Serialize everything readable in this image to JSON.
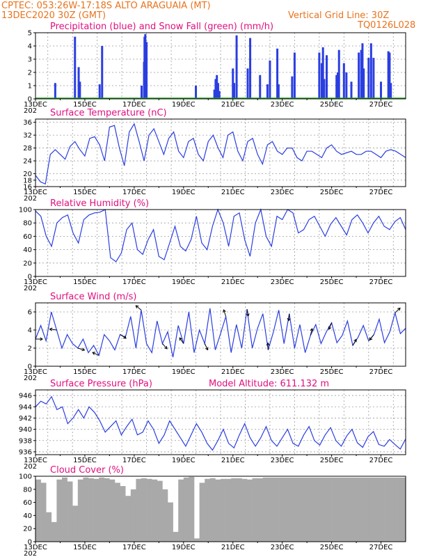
{
  "header": {
    "line1": "CPTEC:   053:26W-17:18S   ALTO ARAGUAIA (MT)",
    "line2": "13DEC2020 30Z (GMT)",
    "right1": "Vertical Grid Line: 30Z",
    "right2": "TQ0126L028"
  },
  "colors": {
    "header": "#e8731e",
    "title": "#e01080",
    "series": "#2a3ee0",
    "snow": "#1aa01a",
    "cloud": "#a9a9a9"
  },
  "x_ticks": [
    "13DEC",
    "15DEC",
    "17DEC",
    "19DEC",
    "21DEC",
    "23DEC",
    "25DEC",
    "27DEC"
  ],
  "x_extra_label": "202",
  "chart_data": [
    {
      "id": "precip",
      "type": "bar",
      "title": "Precipitation (blue) and Snow Fall (green) (mm/h)",
      "ylim": [
        0,
        5
      ],
      "yticks": [
        "0",
        "1",
        "2",
        "3",
        "4",
        "5"
      ],
      "xlim_days": [
        0,
        15
      ],
      "grid": true,
      "series": [
        {
          "name": "Precipitation",
          "x": [
            0.8,
            1.6,
            1.75,
            1.8,
            2.6,
            2.7,
            4.3,
            4.4,
            4.42,
            4.45,
            4.5,
            6.5,
            7.25,
            7.3,
            7.35,
            7.4,
            7.45,
            8.0,
            8.05,
            8.15,
            8.6,
            8.7,
            9.1,
            9.4,
            9.5,
            9.8,
            9.85,
            10.4,
            10.5,
            11.5,
            11.6,
            11.65,
            11.7,
            11.8,
            12.2,
            12.25,
            12.3,
            12.5,
            12.6,
            12.8,
            13.1,
            13.2,
            13.25,
            13.3,
            13.5,
            13.6,
            13.7,
            14.0,
            14.3,
            14.35,
            14.4
          ],
          "values": [
            1.2,
            4.7,
            2.4,
            1.3,
            1.1,
            4.0,
            1.0,
            2.8,
            4.7,
            4.9,
            4.3,
            1.0,
            0.7,
            1.5,
            1.8,
            1.2,
            0.6,
            2.3,
            1.2,
            4.8,
            2.3,
            4.6,
            1.8,
            1.1,
            2.9,
            3.8,
            1.1,
            1.7,
            3.5,
            3.5,
            2.7,
            3.9,
            1.5,
            3.3,
            1.8,
            2.0,
            3.7,
            2.7,
            2.0,
            1.3,
            3.5,
            3.7,
            4.2,
            2.3,
            3.1,
            4.2,
            3.1,
            1.3,
            3.6,
            3.5,
            1.2
          ]
        }
      ],
      "snow": {
        "name": "Snow Fall",
        "value": 0
      }
    },
    {
      "id": "temp",
      "type": "line",
      "title": "Surface Temperature (nC)",
      "ylim": [
        16,
        37
      ],
      "yticks": [
        "16",
        "18",
        "20",
        "24",
        "28",
        "32",
        "36"
      ],
      "yvals": [
        16,
        18,
        20,
        24,
        28,
        32,
        36
      ],
      "grid": true,
      "series": [
        {
          "name": "Surface Temperature",
          "values": [
            19.5,
            17.5,
            16.8,
            26,
            27.5,
            26,
            24.5,
            28.5,
            30,
            27.5,
            25.5,
            31,
            31.5,
            29,
            24,
            34.5,
            35,
            28,
            22.5,
            33,
            35.5,
            30,
            24,
            32,
            34,
            30,
            26,
            31,
            33,
            27,
            25,
            30,
            31,
            26,
            24,
            30,
            32,
            28,
            25,
            32,
            33,
            27,
            24,
            30,
            31,
            26,
            23,
            29,
            30,
            27,
            26,
            28,
            28,
            25,
            24,
            27,
            27,
            26,
            25,
            28,
            29,
            27,
            26,
            26.5,
            27,
            26,
            26,
            27,
            27,
            26,
            25,
            27,
            27.5,
            27,
            26,
            25
          ]
        }
      ]
    },
    {
      "id": "rh",
      "type": "line",
      "title": "Relative Humidity (%)",
      "ylim": [
        0,
        100
      ],
      "yticks": [
        "0",
        "20",
        "40",
        "60",
        "80",
        "100"
      ],
      "yvals": [
        0,
        20,
        40,
        60,
        80,
        100
      ],
      "grid": true,
      "series": [
        {
          "name": "Relative Humidity",
          "values": [
            98,
            90,
            60,
            45,
            80,
            88,
            92,
            65,
            50,
            85,
            92,
            95,
            96,
            100,
            28,
            22,
            35,
            70,
            80,
            40,
            33,
            55,
            70,
            30,
            25,
            50,
            75,
            45,
            38,
            55,
            90,
            50,
            40,
            75,
            100,
            80,
            45,
            90,
            95,
            55,
            30,
            80,
            100,
            60,
            45,
            90,
            85,
            100,
            95,
            65,
            70,
            85,
            90,
            75,
            60,
            78,
            88,
            75,
            62,
            85,
            92,
            80,
            65,
            80,
            90,
            75,
            70,
            82,
            88,
            70
          ]
        }
      ]
    },
    {
      "id": "wind",
      "type": "line",
      "title": "Surface Wind (m/s)",
      "ylim": [
        0,
        7
      ],
      "yticks": [
        "0",
        "2",
        "4",
        "6"
      ],
      "yvals": [
        0,
        2,
        4,
        6
      ],
      "grid": true,
      "series": [
        {
          "name": "Surface Wind",
          "values": [
            3,
            4.5,
            2.8,
            6,
            4,
            2,
            3.5,
            2.5,
            2,
            3,
            1.5,
            2.3,
            1.2,
            3.5,
            2.8,
            1.8,
            3.5,
            3.2,
            5.5,
            2,
            6.2,
            2.5,
            1.5,
            5,
            2.5,
            3.8,
            1,
            4.5,
            2.5,
            6,
            1.5,
            4,
            2.5,
            6.4,
            1.8,
            3.6,
            5.5,
            1.5,
            4.6,
            2,
            6.3,
            2,
            4.2,
            5.8,
            1.8,
            3.8,
            6.2,
            2.5,
            5.8,
            2,
            4.6,
            1.5,
            3.4,
            4.6,
            2.5,
            3.8,
            4.8,
            2.6,
            3.4,
            5,
            2.3,
            3.2,
            4.5,
            2.8,
            3.5,
            5.2,
            2.6,
            3.8,
            5.9,
            3.6,
            4.2
          ]
        }
      ]
    },
    {
      "id": "pressure",
      "type": "line",
      "title": "Surface Pressure (hPa)",
      "subtitle": "Model Altitude: 611.132 m",
      "ylim": [
        935.5,
        947
      ],
      "yticks": [
        "936",
        "938",
        "940",
        "942",
        "944",
        "946"
      ],
      "yvals": [
        936,
        938,
        940,
        942,
        944,
        946
      ],
      "grid": true,
      "series": [
        {
          "name": "Surface Pressure",
          "values": [
            944,
            945,
            944.5,
            945.8,
            943.5,
            944,
            941,
            942,
            943.5,
            942,
            944,
            943,
            941.5,
            939.5,
            940.5,
            941.5,
            939,
            940.5,
            941.8,
            939,
            939.5,
            941.5,
            940,
            937.5,
            939,
            941.5,
            940,
            938.5,
            937,
            939,
            941,
            939.5,
            937.5,
            936.3,
            938,
            940,
            937.5,
            936.7,
            939,
            941,
            938.5,
            937,
            938.5,
            940.5,
            938,
            937,
            938.5,
            940,
            937.5,
            937,
            939,
            940.5,
            938,
            937.2,
            939,
            940.3,
            938,
            937,
            938.8,
            940,
            937.6,
            936.8,
            938.7,
            939.6,
            937.3,
            937,
            938.2,
            937.3,
            936.5,
            938.3
          ]
        }
      ]
    },
    {
      "id": "cloud",
      "type": "area",
      "title": "Cloud Cover (%)",
      "ylim": [
        0,
        100
      ],
      "yticks": [
        "0",
        "20",
        "40",
        "60",
        "80",
        "100"
      ],
      "yvals": [
        0,
        20,
        40,
        60,
        80,
        100
      ],
      "grid": false,
      "series": [
        {
          "name": "Cloud Cover",
          "values": [
            95,
            90,
            45,
            30,
            95,
            98,
            92,
            55,
            95,
            98,
            97,
            96,
            98,
            97,
            95,
            90,
            85,
            70,
            80,
            96,
            97,
            96,
            95,
            93,
            80,
            60,
            15,
            95,
            98,
            99,
            5,
            90,
            96,
            97,
            95,
            96,
            96,
            97,
            97,
            96,
            95,
            97,
            97,
            98,
            98,
            98,
            98,
            98,
            98,
            98,
            98,
            98,
            98,
            98,
            98,
            98,
            98,
            98,
            98,
            98,
            98,
            98,
            98,
            98,
            98,
            98,
            98,
            98,
            98,
            98
          ]
        }
      ]
    }
  ]
}
